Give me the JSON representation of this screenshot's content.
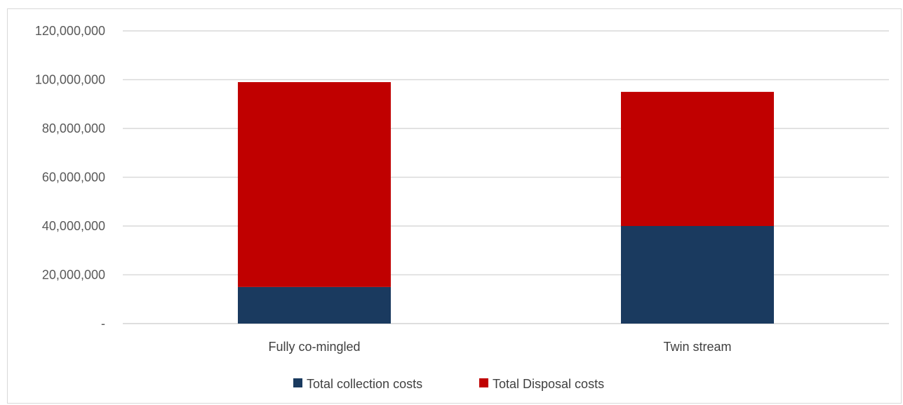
{
  "chart_data": {
    "type": "bar",
    "stacked": true,
    "categories": [
      "Fully co-mingled",
      "Twin stream"
    ],
    "series": [
      {
        "name": "Total collection costs",
        "values": [
          15000000,
          40000000
        ],
        "color": "#1a3a5f"
      },
      {
        "name": "Total Disposal costs",
        "values": [
          84000000,
          55000000
        ],
        "color": "#c00000"
      }
    ],
    "ylim": [
      0,
      120000000
    ],
    "y_ticks": [
      0,
      20000000,
      40000000,
      60000000,
      80000000,
      100000000,
      120000000
    ],
    "y_tick_labels": [
      "-",
      "20,000,000",
      "40,000,000",
      "60,000,000",
      "80,000,000",
      "100,000,000",
      "120,000,000"
    ],
    "grid": true,
    "legend_position": "bottom",
    "title": "",
    "xlabel": "",
    "ylabel": ""
  }
}
